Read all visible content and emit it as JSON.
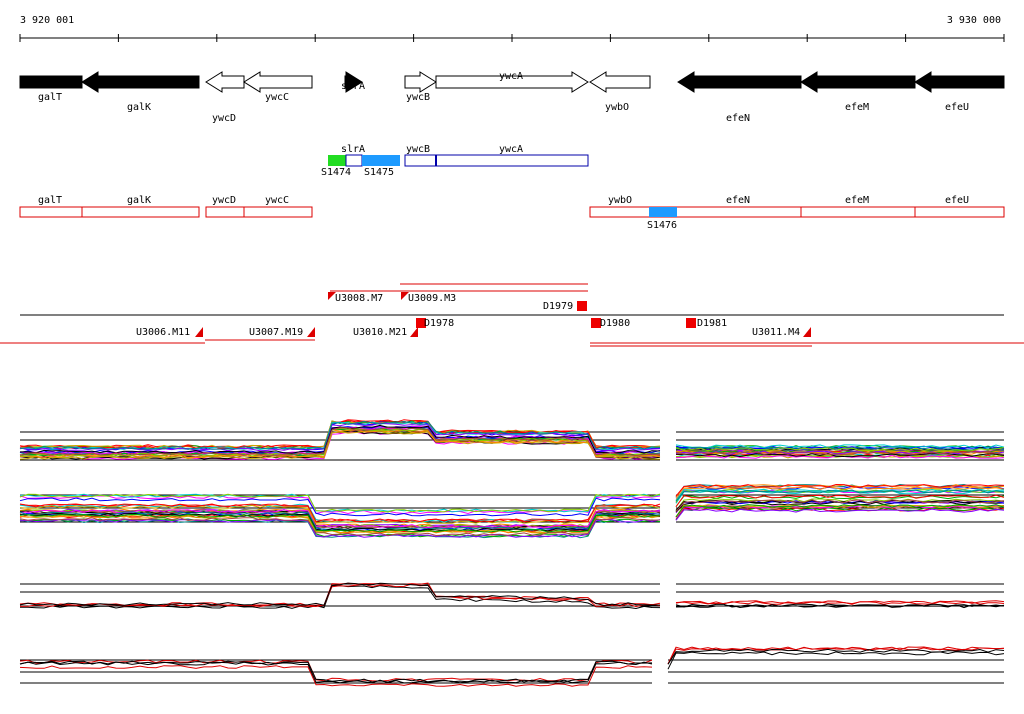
{
  "ruler": {
    "start": "3 920 001",
    "end": "3 930 000"
  },
  "genes": [
    "galT",
    "galK",
    "ywcD",
    "ywcC",
    "slrA",
    "ywcB",
    "ywcA",
    "ywbO",
    "efeN",
    "efeM",
    "efeU"
  ],
  "transcripts": {
    "labels": [
      "slrA",
      "ywcB",
      "ywcA"
    ],
    "segments": [
      "S1474",
      "S1475"
    ]
  },
  "operons": {
    "labels": [
      "galT",
      "galK",
      "ywcD",
      "ywcC",
      "ywbO",
      "efeN",
      "efeM",
      "efeU"
    ],
    "segments": [
      "S1476"
    ]
  },
  "features": [
    "U3008.M7",
    "U3009.M3",
    "D1979",
    "D1978",
    "D1980",
    "D1981",
    "U3006.M11",
    "U3007.M19",
    "U3010.M21",
    "U3011.M4"
  ]
}
